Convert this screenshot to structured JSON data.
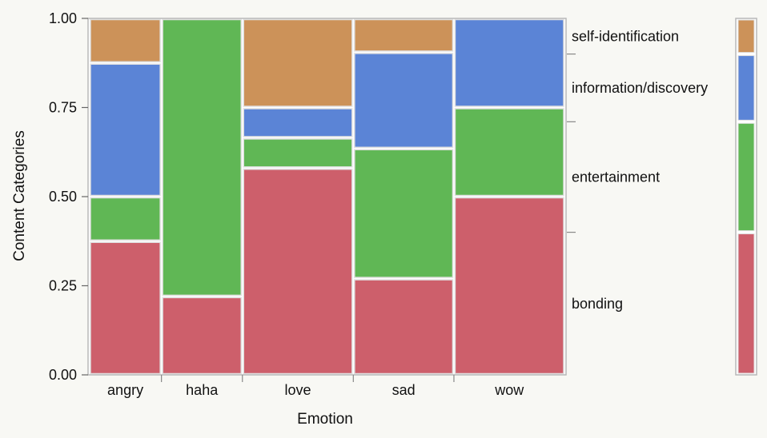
{
  "chart_data": {
    "type": "mosaic",
    "title": "",
    "xlabel": "Emotion",
    "ylabel": "Content Categories",
    "ylim": [
      0,
      1
    ],
    "y_ticks": [
      "0.00",
      "0.25",
      "0.50",
      "0.75",
      "1.00"
    ],
    "grid": false,
    "legend_position": "right",
    "categories": [
      "angry",
      "haha",
      "love",
      "sad",
      "wow"
    ],
    "category_widths": [
      0.135,
      0.152,
      0.21,
      0.19,
      0.21
    ],
    "series": [
      {
        "name": "bonding",
        "color": "#cd5f6b",
        "values": [
          0.375,
          0.22,
          0.58,
          0.27,
          0.5
        ]
      },
      {
        "name": "entertainment",
        "color": "#60b755",
        "values": [
          0.125,
          0.78,
          0.085,
          0.365,
          0.25
        ]
      },
      {
        "name": "information/discovery",
        "color": "#5b84d6",
        "values": [
          0.375,
          0.0,
          0.085,
          0.27,
          0.25
        ]
      },
      {
        "name": "self-identification",
        "color": "#cc9259",
        "values": [
          0.125,
          0.0,
          0.25,
          0.095,
          0.0
        ]
      }
    ],
    "marginal_shares": [
      0.4,
      0.31,
      0.19,
      0.1
    ]
  }
}
